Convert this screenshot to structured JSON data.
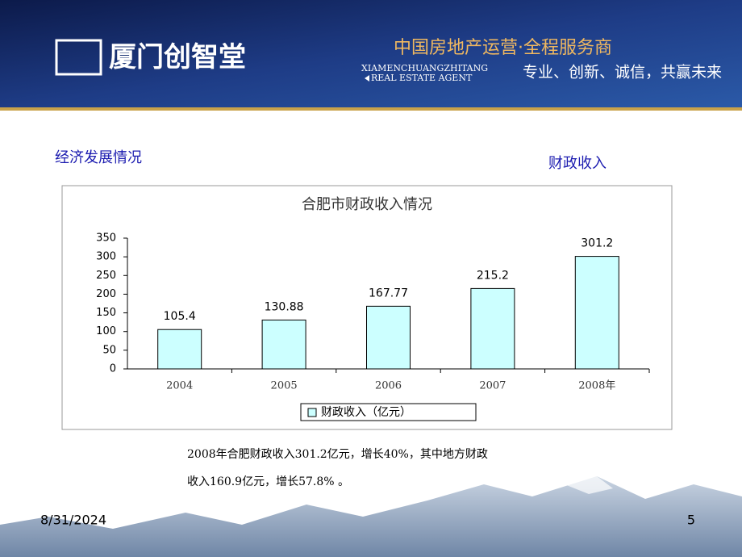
{
  "header": {
    "logo_text": "厦门创智堂",
    "slogan": "中国房地产运营·全程服务商",
    "english_1": "XIAMENCHUANGZHITANG",
    "english_2": "REAL ESTATE AGENT",
    "motto": "专业、创新、诚信，共赢未来"
  },
  "section_title": "经济发展情况",
  "subsection": "财政收入",
  "chart_data": {
    "type": "bar",
    "title": "合肥市财政收入情况",
    "categories": [
      "2004",
      "2005",
      "2006",
      "2007",
      "2008年"
    ],
    "series": [
      {
        "name": "财政收入（亿元）",
        "color": "#ccffff",
        "values": [
          105.4,
          130.88,
          167.77,
          215.2,
          301.2
        ]
      }
    ],
    "ylim": [
      0,
      350
    ],
    "yticks": [
      0,
      50,
      100,
      150,
      200,
      250,
      300,
      350
    ],
    "grid": false
  },
  "note": [
    "2008年合肥财政收入301.2亿元，增长40%，其中地方财政",
    "收入160.9亿元，增长57.8% 。"
  ],
  "footer": {
    "date": "8/31/2024",
    "page": 5
  }
}
